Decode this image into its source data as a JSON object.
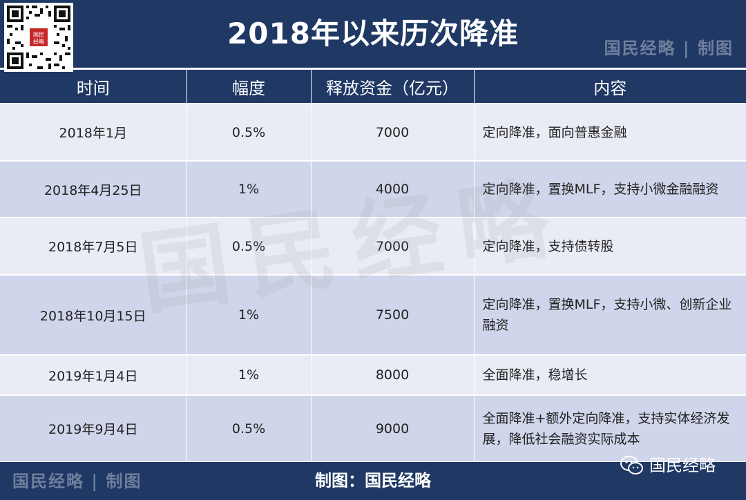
{
  "header": {
    "title": "2018年以来历次降准",
    "brand_tag": "国民经略 | 制图",
    "qr_seal_text": "国民经略"
  },
  "table": {
    "columns": [
      "时间",
      "幅度",
      "释放资金（亿元）",
      "内容"
    ],
    "rows": [
      {
        "time": "2018年1月",
        "ratio": "0.5%",
        "funds": "7000",
        "content": "定向降准，面向普惠金融"
      },
      {
        "time": "2018年4月25日",
        "ratio": "1%",
        "funds": "4000",
        "content": "定向降准，置换MLF，支持小微金融融资"
      },
      {
        "time": "2018年7月5日",
        "ratio": "0.5%",
        "funds": "7000",
        "content": "定向降准，支持债转股"
      },
      {
        "time": "2018年10月15日",
        "ratio": "1%",
        "funds": "7500",
        "content": "定向降准，置换MLF，支持小微、创新企业融资"
      },
      {
        "time": "2019年1月4日",
        "ratio": "1%",
        "funds": "8000",
        "content": "全面降准，稳增长"
      },
      {
        "time": "2019年9月4日",
        "ratio": "0.5%",
        "funds": "9000",
        "content": "全面降准+额外定向降准，支持实体经济发展，降低社会融资实际成本"
      }
    ]
  },
  "watermark": "国民经略",
  "footer": {
    "brand_tag": "国民经略 | 制图",
    "credit": "制图：国民经略",
    "wechat_label": "国民经略"
  },
  "colors": {
    "navy": "#1f3864",
    "row_light": "#e9ebf5",
    "row_dark": "#cfd5ea",
    "brand_gray": "#6f7f9c"
  },
  "icons": {
    "qr": "qr-code-icon",
    "wechat": "wechat-icon"
  }
}
